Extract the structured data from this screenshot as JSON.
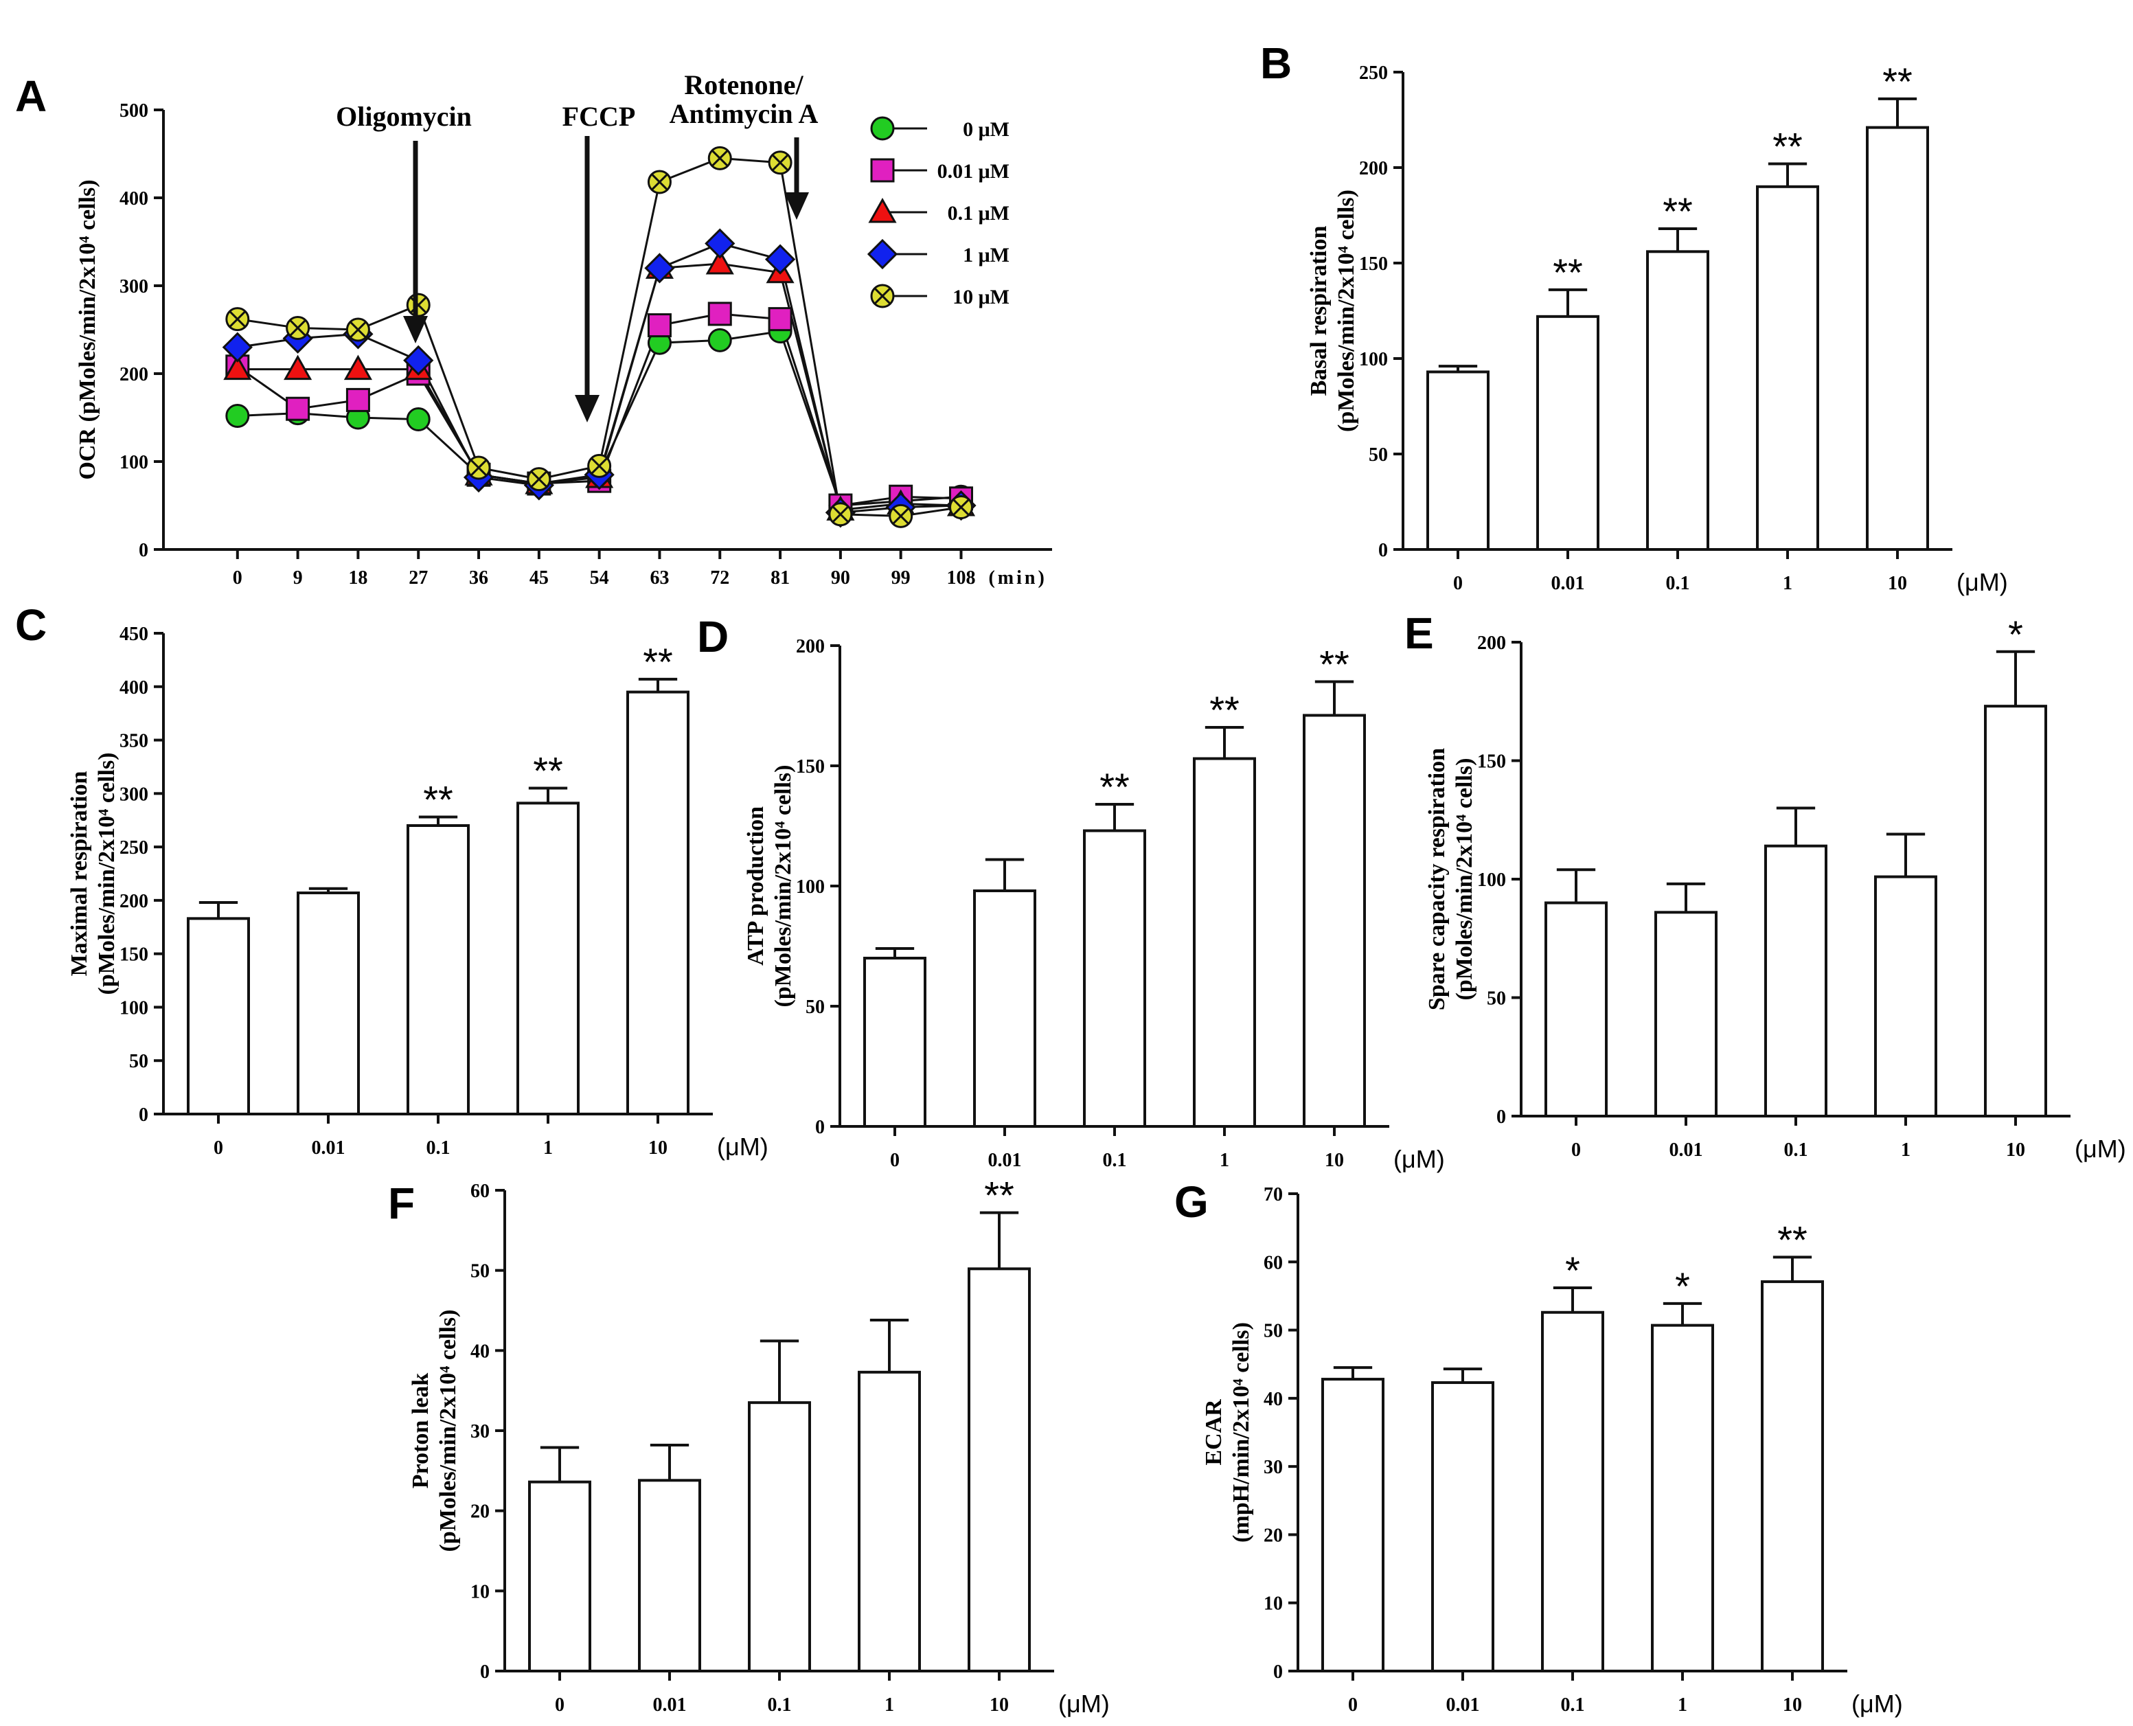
{
  "chart_data": [
    {
      "id": "A",
      "panel_label": "A",
      "type": "line",
      "ylabel": "OCR (pMoles/min/2x10⁴ cells)",
      "x_unit": "(min)",
      "x": [
        0,
        9,
        18,
        27,
        36,
        45,
        54,
        63,
        72,
        81,
        90,
        99,
        108
      ],
      "x_ticks": [
        "0",
        "9",
        "18",
        "27",
        "36",
        "45",
        "54",
        "63",
        "72",
        "81",
        "90",
        "99",
        "108"
      ],
      "ylim": [
        0,
        500
      ],
      "y_ticks": [
        "0",
        "100",
        "200",
        "300",
        "400",
        "500"
      ],
      "annotations": [
        {
          "text": "Oligomycin",
          "x": 31
        },
        {
          "text": "FCCP",
          "x": 54
        },
        {
          "text": "Rotenone/",
          "text2": "Antimycin A",
          "x": 85
        }
      ],
      "series": [
        {
          "name": "0 μM",
          "marker": "circle",
          "color": "#22cc22",
          "values": [
            152,
            155,
            150,
            148,
            85,
            75,
            85,
            235,
            238,
            248,
            50,
            55,
            60
          ]
        },
        {
          "name": "0.01 μM",
          "marker": "square",
          "color": "#e020c0",
          "values": [
            208,
            160,
            170,
            200,
            85,
            75,
            78,
            255,
            268,
            262,
            50,
            60,
            58
          ]
        },
        {
          "name": "0.1 μM",
          "marker": "triangle",
          "color": "#ee1111",
          "values": [
            205,
            205,
            205,
            205,
            85,
            75,
            82,
            320,
            325,
            315,
            45,
            52,
            50
          ]
        },
        {
          "name": "1  μM",
          "marker": "diamond",
          "color": "#1122ee",
          "values": [
            230,
            240,
            245,
            215,
            82,
            73,
            85,
            320,
            348,
            330,
            42,
            48,
            50
          ]
        },
        {
          "name": "10 μM",
          "marker": "xcircle",
          "color": "#dddd33",
          "values": [
            262,
            252,
            250,
            278,
            93,
            80,
            95,
            418,
            445,
            440,
            40,
            38,
            48
          ]
        }
      ]
    },
    {
      "id": "B",
      "panel_label": "B",
      "type": "bar",
      "ylabel_line1": "Basal respiration",
      "ylabel_line2": "(pMoles/min/2x10⁴ cells)",
      "categories": [
        "0",
        "0.01",
        "0.1",
        "1",
        "10"
      ],
      "x_unit": "(μM)",
      "values": [
        93,
        122,
        156,
        190,
        221
      ],
      "errors": [
        3,
        14,
        12,
        12,
        15
      ],
      "significance": [
        "",
        "**",
        "**",
        "**",
        "**"
      ],
      "ylim": [
        0,
        250
      ],
      "y_ticks": [
        "0",
        "50",
        "100",
        "150",
        "200",
        "250"
      ]
    },
    {
      "id": "C",
      "panel_label": "C",
      "type": "bar",
      "ylabel_line1": "Maximal respiration",
      "ylabel_line2": "(pMoles/min/2x10⁴ cells)",
      "categories": [
        "0",
        "0.01",
        "0.1",
        "1",
        "10"
      ],
      "x_unit": "(μM)",
      "values": [
        183,
        207,
        270,
        291,
        395
      ],
      "errors": [
        15,
        4,
        8,
        14,
        12
      ],
      "significance": [
        "",
        "",
        "**",
        "**",
        "**"
      ],
      "ylim": [
        0,
        450
      ],
      "y_ticks": [
        "0",
        "50",
        "100",
        "150",
        "200",
        "250",
        "300",
        "350",
        "400",
        "450"
      ]
    },
    {
      "id": "D",
      "panel_label": "D",
      "type": "bar",
      "ylabel_line1": "ATP production",
      "ylabel_line2": "(pMoles/min/2x10⁴ cells)",
      "categories": [
        "0",
        "0.01",
        "0.1",
        "1",
        "10"
      ],
      "x_unit": "(μM)",
      "values": [
        70,
        98,
        123,
        153,
        171
      ],
      "errors": [
        4,
        13,
        11,
        13,
        14
      ],
      "significance": [
        "",
        "",
        "**",
        "**",
        "**"
      ],
      "ylim": [
        0,
        200
      ],
      "y_ticks": [
        "0",
        "50",
        "100",
        "150",
        "200"
      ]
    },
    {
      "id": "E",
      "panel_label": "E",
      "type": "bar",
      "ylabel_line1": "Spare capacity respiration",
      "ylabel_line2": "(pMoles/min/2x10⁴ cells)",
      "categories": [
        "0",
        "0.01",
        "0.1",
        "1",
        "10"
      ],
      "x_unit": "(μM)",
      "values": [
        90,
        86,
        114,
        101,
        173
      ],
      "errors": [
        14,
        12,
        16,
        18,
        23
      ],
      "significance": [
        "",
        "",
        "",
        "",
        "*"
      ],
      "ylim": [
        0,
        200
      ],
      "y_ticks": [
        "0",
        "50",
        "100",
        "150",
        "200"
      ]
    },
    {
      "id": "F",
      "panel_label": "F",
      "type": "bar",
      "ylabel_line1": "Proton leak",
      "ylabel_line2": "(pMoles/min/2x10⁴ cells)",
      "categories": [
        "0",
        "0.01",
        "0.1",
        "1",
        "10"
      ],
      "x_unit": "(μM)",
      "values": [
        23.6,
        23.8,
        33.5,
        37.3,
        50.2
      ],
      "errors": [
        4.3,
        4.4,
        7.7,
        6.5,
        7
      ],
      "significance": [
        "",
        "",
        "",
        "",
        "**"
      ],
      "ylim": [
        0,
        60
      ],
      "y_ticks": [
        "0",
        "10",
        "20",
        "30",
        "40",
        "50",
        "60"
      ]
    },
    {
      "id": "G",
      "panel_label": "G",
      "type": "bar",
      "ylabel_line1": "ECAR",
      "ylabel_line2": "(mpH/min/2x10⁴ cells)",
      "categories": [
        "0",
        "0.01",
        "0.1",
        "1",
        "10"
      ],
      "x_unit": "(μM)",
      "values": [
        42.8,
        42.3,
        52.6,
        50.7,
        57.1
      ],
      "errors": [
        1.7,
        2,
        3.6,
        3.2,
        3.6
      ],
      "significance": [
        "",
        "",
        "*",
        "*",
        "**"
      ],
      "ylim": [
        0,
        70
      ],
      "y_ticks": [
        "0",
        "10",
        "20",
        "30",
        "40",
        "50",
        "60",
        "70"
      ]
    }
  ]
}
